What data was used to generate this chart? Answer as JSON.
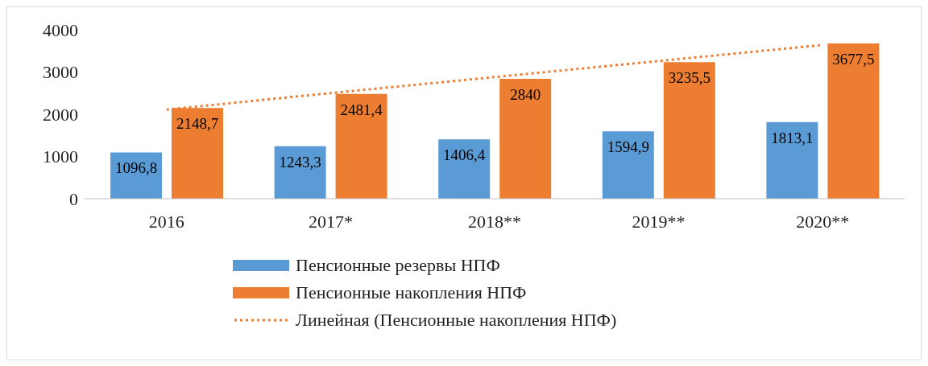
{
  "chart_data": {
    "type": "bar",
    "categories": [
      "2016",
      "2017*",
      "2018**",
      "2019**",
      "2020**"
    ],
    "series": [
      {
        "name": "Пенсионные резервы НПФ",
        "color": "#5b9bd5",
        "values": [
          1096.8,
          1243.3,
          1406.4,
          1594.9,
          1813.1
        ],
        "value_labels": [
          "1096,8",
          "1243,3",
          "1406,4",
          "1594,9",
          "1813,1"
        ]
      },
      {
        "name": "Пенсионные накопления НПФ",
        "color": "#ed7d31",
        "values": [
          2148.7,
          2481.4,
          2840,
          3235.5,
          3677.5
        ],
        "value_labels": [
          "2148,7",
          "2481,4",
          "2840",
          "3235,5",
          "3677,5"
        ]
      },
      {
        "name": "Линейная (Пенсионные накопления НПФ)",
        "type": "line",
        "color": "#ed7d31",
        "line_style": "dotted",
        "values": [
          2110,
          2500,
          2880,
          3260,
          3640
        ]
      }
    ],
    "ylim": [
      0,
      4000
    ],
    "yticks": [
      0,
      1000,
      2000,
      3000,
      4000
    ],
    "grid": false,
    "legend": "bottom",
    "marker": "none"
  }
}
